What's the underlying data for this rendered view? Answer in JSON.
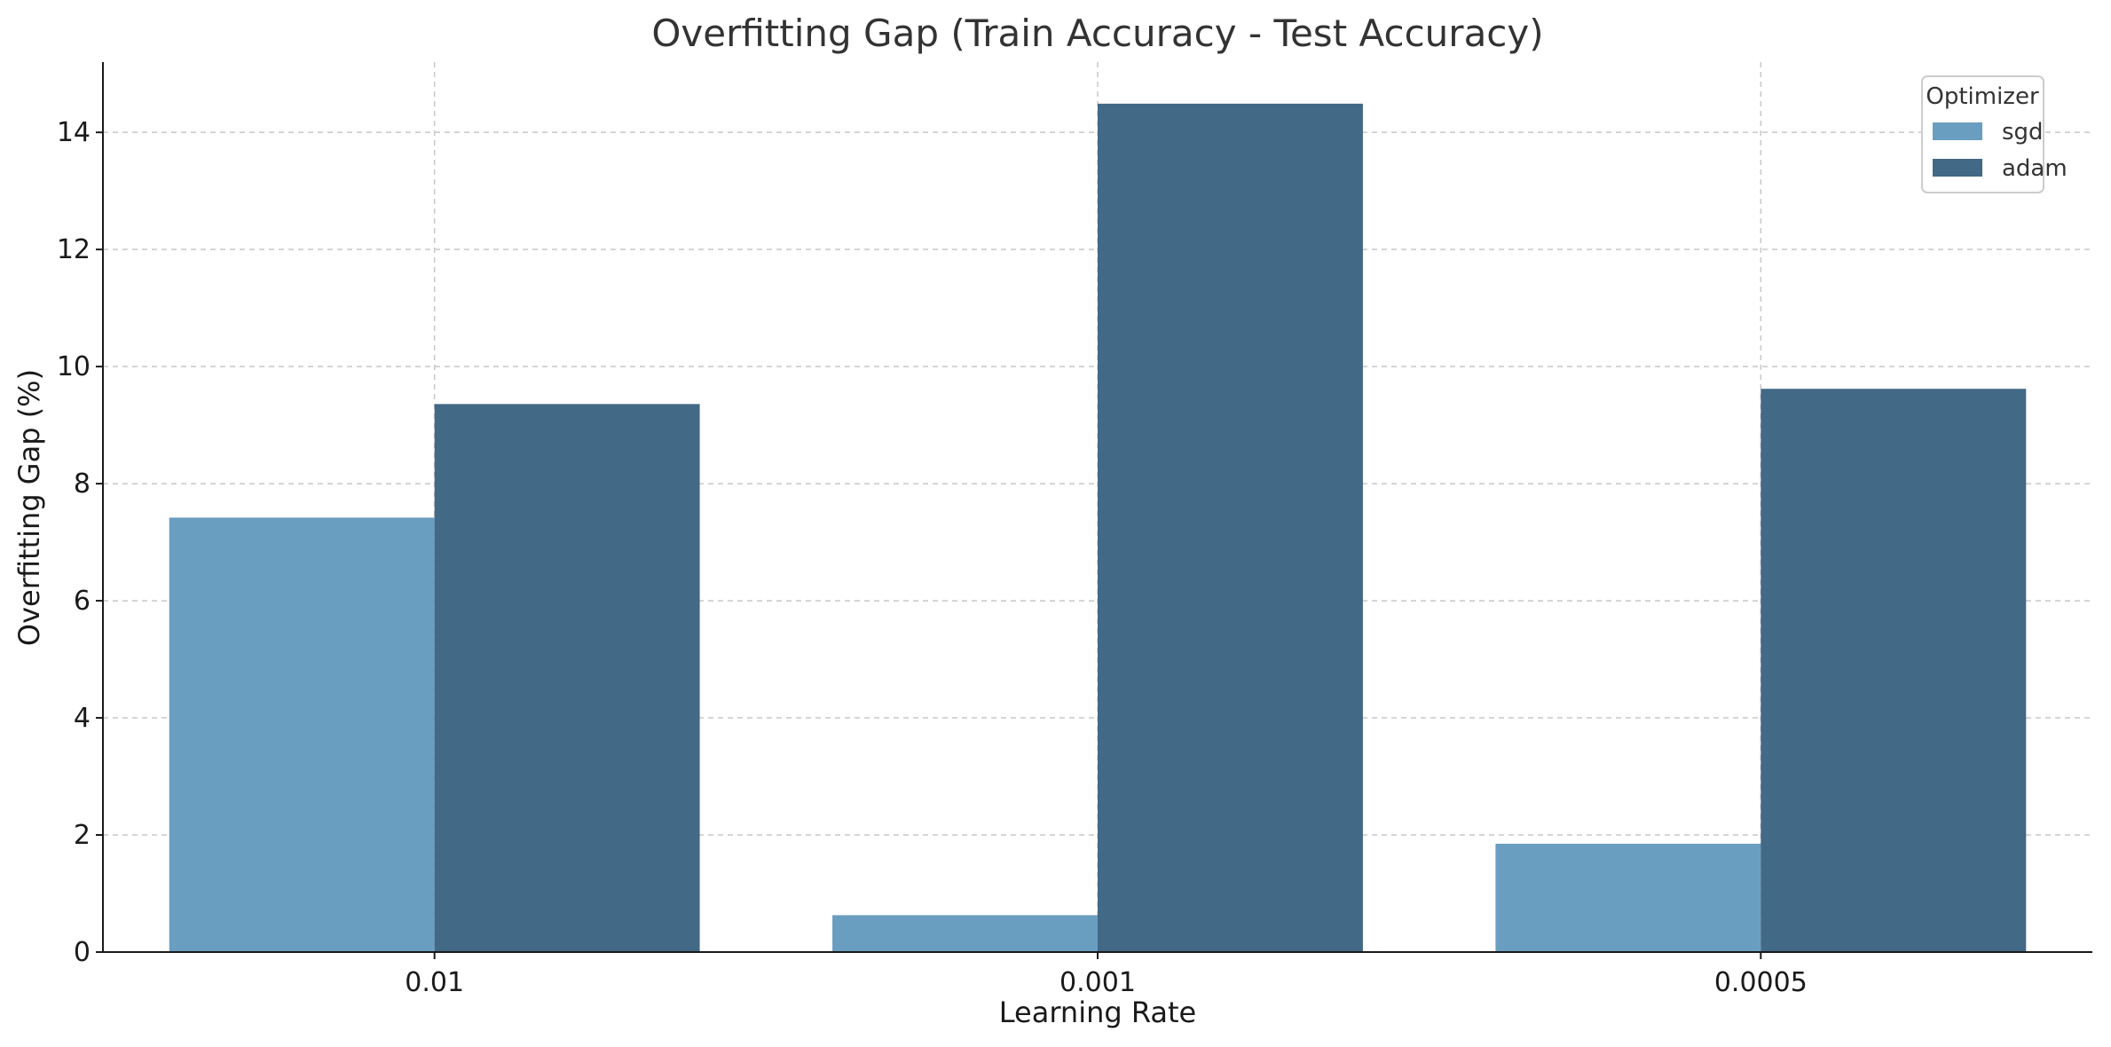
{
  "chart_data": {
    "type": "bar",
    "title": "Overfitting Gap (Train Accuracy - Test Accuracy)",
    "xlabel": "Learning Rate",
    "ylabel": "Overfitting Gap (%)",
    "categories": [
      "0.01",
      "0.001",
      "0.0005"
    ],
    "ylim": [
      0,
      15.2
    ],
    "yticks": [
      0,
      2,
      4,
      6,
      8,
      10,
      12,
      14
    ],
    "grid": true,
    "legend": {
      "title": "Optimizer",
      "placement": "top-right"
    },
    "series": [
      {
        "name": "sgd",
        "color": "#6a9ec0",
        "values": [
          7.42,
          0.63,
          1.85
        ]
      },
      {
        "name": "adam",
        "color": "#426985",
        "values": [
          9.36,
          14.49,
          9.62
        ]
      }
    ]
  }
}
